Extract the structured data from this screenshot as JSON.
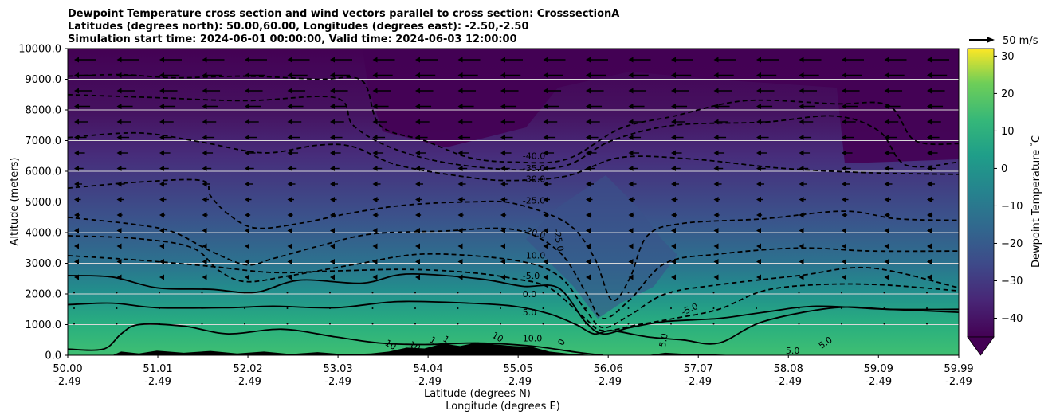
{
  "chart_data": {
    "type": "contour",
    "title_lines": [
      "Dewpoint Temperature cross section and wind vectors parallel to cross section: CrosssectionA",
      "Latitudes (degrees north): 50.00,60.00, Longitudes (degrees east): -2.50,-2.50",
      "Simulation start time: 2024-06-01 00:00:00, Valid time: 2024-06-03 12:00:00"
    ],
    "ylabel": "Altitude (meters)",
    "xlabel_lines": [
      "Latitude (degrees N)",
      "Longitude (degrees E)"
    ],
    "ylim": [
      0,
      10000
    ],
    "yticks": [
      {
        "v": 0,
        "label": "0.0"
      },
      {
        "v": 1000,
        "label": "1000.0"
      },
      {
        "v": 2000,
        "label": "2000.0"
      },
      {
        "v": 3000,
        "label": "3000.0"
      },
      {
        "v": 4000,
        "label": "4000.0"
      },
      {
        "v": 5000,
        "label": "5000.0"
      },
      {
        "v": 6000,
        "label": "6000.0"
      },
      {
        "v": 7000,
        "label": "7000.0"
      },
      {
        "v": 8000,
        "label": "8000.0"
      },
      {
        "v": 9000,
        "label": "9000.0"
      },
      {
        "v": 10000,
        "label": "10000.0"
      }
    ],
    "xlim": [
      50.0,
      59.99
    ],
    "xticks": [
      {
        "v": 50.0,
        "lat": "50.00",
        "lon": "-2.49"
      },
      {
        "v": 51.01,
        "lat": "51.01",
        "lon": "-2.49"
      },
      {
        "v": 52.02,
        "lat": "52.02",
        "lon": "-2.49"
      },
      {
        "v": 53.03,
        "lat": "53.03",
        "lon": "-2.49"
      },
      {
        "v": 54.04,
        "lat": "54.04",
        "lon": "-2.49"
      },
      {
        "v": 55.05,
        "lat": "55.05",
        "lon": "-2.49"
      },
      {
        "v": 56.06,
        "lat": "56.06",
        "lon": "-2.49"
      },
      {
        "v": 57.07,
        "lat": "57.07",
        "lon": "-2.49"
      },
      {
        "v": 58.08,
        "lat": "58.08",
        "lon": "-2.49"
      },
      {
        "v": 59.09,
        "lat": "59.09",
        "lon": "-2.49"
      },
      {
        "v": 59.99,
        "lat": "59.99",
        "lon": "-2.49"
      }
    ],
    "grid": "horizontal",
    "colorbar": {
      "label": "Dewpoint Temperature $^\\circ$C",
      "range": [
        -45,
        32
      ],
      "ticks": [
        {
          "v": -40,
          "label": "−40"
        },
        {
          "v": -30,
          "label": "−30"
        },
        {
          "v": -20,
          "label": "−20"
        },
        {
          "v": -10,
          "label": "−10"
        },
        {
          "v": 0,
          "label": "0"
        },
        {
          "v": 10,
          "label": "10"
        },
        {
          "v": 20,
          "label": "20"
        },
        {
          "v": 30,
          "label": "30"
        }
      ],
      "colormap": "viridis",
      "extend": "min"
    },
    "quiver_key": {
      "label": "50 m/s"
    },
    "contours": [
      {
        "level": -40.0,
        "label": "-40.0",
        "style": "dashed",
        "pts": [
          [
            50.0,
            9100
          ],
          [
            50.6,
            9150
          ],
          [
            51.2,
            9050
          ],
          [
            52.0,
            9100
          ],
          [
            52.8,
            9000
          ],
          [
            53.3,
            8950
          ],
          [
            53.5,
            7500
          ],
          [
            54.0,
            7000
          ],
          [
            54.5,
            6450
          ],
          [
            55.0,
            6300
          ],
          [
            55.6,
            6400
          ],
          [
            56.2,
            7400
          ],
          [
            56.8,
            7800
          ],
          [
            57.6,
            8300
          ],
          [
            58.6,
            8200
          ],
          [
            59.2,
            8150
          ],
          [
            59.5,
            7000
          ],
          [
            59.99,
            6900
          ]
        ]
      },
      {
        "level": -35.0,
        "label": "-35.0",
        "style": "dashed",
        "pts": [
          [
            50.0,
            8500
          ],
          [
            51.0,
            8400
          ],
          [
            52.0,
            8300
          ],
          [
            53.0,
            8400
          ],
          [
            53.2,
            7500
          ],
          [
            53.6,
            6800
          ],
          [
            54.2,
            6300
          ],
          [
            55.0,
            6050
          ],
          [
            55.6,
            6200
          ],
          [
            56.1,
            7000
          ],
          [
            56.8,
            7500
          ],
          [
            57.8,
            7600
          ],
          [
            58.6,
            7800
          ],
          [
            59.1,
            7300
          ],
          [
            59.4,
            6200
          ],
          [
            59.99,
            6300
          ]
        ]
      },
      {
        "level": -30.0,
        "label": "-30.0",
        "style": "dashed",
        "pts": [
          [
            50.0,
            7100
          ],
          [
            50.8,
            7250
          ],
          [
            51.5,
            6950
          ],
          [
            52.2,
            6600
          ],
          [
            52.8,
            6850
          ],
          [
            53.2,
            6800
          ],
          [
            53.7,
            6200
          ],
          [
            54.5,
            5800
          ],
          [
            55.0,
            5700
          ],
          [
            55.6,
            5850
          ],
          [
            56.2,
            6450
          ],
          [
            57.0,
            6400
          ],
          [
            58.0,
            6100
          ],
          [
            59.0,
            5950
          ],
          [
            59.99,
            5900
          ]
        ]
      },
      {
        "level": -25.0,
        "label": "-25.0",
        "style": "dashed",
        "pts": [
          [
            50.0,
            5450
          ],
          [
            50.8,
            5650
          ],
          [
            51.5,
            5700
          ],
          [
            51.6,
            5200
          ],
          [
            51.8,
            4600
          ],
          [
            52.1,
            4150
          ],
          [
            52.6,
            4300
          ],
          [
            53.2,
            4650
          ],
          [
            53.8,
            4900
          ],
          [
            54.5,
            5000
          ],
          [
            55.0,
            4950
          ],
          [
            55.6,
            4300
          ],
          [
            55.9,
            3200
          ],
          [
            56.1,
            1800
          ],
          [
            56.3,
            2500
          ],
          [
            56.5,
            3900
          ],
          [
            56.9,
            4300
          ],
          [
            57.8,
            4450
          ],
          [
            58.7,
            4700
          ],
          [
            59.3,
            4450
          ],
          [
            59.99,
            4400
          ]
        ]
      },
      {
        "level": -20.0,
        "label": "-20.0",
        "style": "dashed",
        "pts": [
          [
            50.0,
            4500
          ],
          [
            50.8,
            4250
          ],
          [
            51.2,
            4000
          ],
          [
            51.6,
            3400
          ],
          [
            52.0,
            2950
          ],
          [
            52.3,
            3150
          ],
          [
            52.8,
            3550
          ],
          [
            53.4,
            3950
          ],
          [
            54.2,
            4050
          ],
          [
            55.0,
            4100
          ],
          [
            55.5,
            3400
          ],
          [
            55.8,
            2100
          ],
          [
            56.0,
            1200
          ],
          [
            56.3,
            1800
          ],
          [
            56.7,
            3000
          ],
          [
            57.3,
            3300
          ],
          [
            58.2,
            3500
          ],
          [
            59.0,
            3400
          ],
          [
            59.99,
            3400
          ]
        ]
      },
      {
        "level": -10.0,
        "label": "-10.0",
        "style": "dashed",
        "pts": [
          [
            50.0,
            3900
          ],
          [
            50.8,
            3800
          ],
          [
            51.4,
            3500
          ],
          [
            51.7,
            2750
          ],
          [
            52.0,
            2400
          ],
          [
            52.5,
            2600
          ],
          [
            53.2,
            2950
          ],
          [
            54.0,
            3300
          ],
          [
            55.0,
            3100
          ],
          [
            55.5,
            2600
          ],
          [
            55.8,
            1500
          ],
          [
            56.0,
            900
          ],
          [
            56.3,
            1300
          ],
          [
            56.7,
            2000
          ],
          [
            57.3,
            2300
          ],
          [
            58.2,
            2600
          ],
          [
            59.0,
            2850
          ],
          [
            59.99,
            2200
          ]
        ]
      },
      {
        "level": -5.0,
        "label": "-5.0",
        "style": "dashed",
        "pts": [
          [
            50.0,
            3250
          ],
          [
            50.8,
            3100
          ],
          [
            51.6,
            2900
          ],
          [
            52.3,
            2700
          ],
          [
            53.0,
            2750
          ],
          [
            53.8,
            2800
          ],
          [
            54.5,
            2700
          ],
          [
            55.0,
            2500
          ],
          [
            55.4,
            2200
          ],
          [
            55.8,
            1200
          ],
          [
            56.0,
            800
          ],
          [
            56.4,
            1000
          ],
          [
            56.8,
            1200
          ],
          [
            57.3,
            1500
          ],
          [
            57.8,
            2100
          ],
          [
            58.4,
            2300
          ],
          [
            59.1,
            2300
          ],
          [
            59.99,
            2100
          ]
        ]
      },
      {
        "level": 0.0,
        "label": "0.0",
        "style": "solid",
        "pts": [
          [
            50.0,
            2600
          ],
          [
            50.5,
            2550
          ],
          [
            51.0,
            2200
          ],
          [
            51.6,
            2150
          ],
          [
            52.1,
            2050
          ],
          [
            52.6,
            2450
          ],
          [
            53.3,
            2350
          ],
          [
            53.8,
            2650
          ],
          [
            54.6,
            2500
          ],
          [
            55.1,
            2250
          ],
          [
            55.5,
            2200
          ],
          [
            55.8,
            1100
          ],
          [
            56.0,
            700
          ],
          [
            56.3,
            900
          ],
          [
            56.7,
            1100
          ],
          [
            57.3,
            1200
          ],
          [
            57.8,
            1400
          ],
          [
            58.4,
            1600
          ],
          [
            59.2,
            1500
          ],
          [
            59.99,
            1500
          ]
        ]
      },
      {
        "level": 5.0,
        "label": "5.0",
        "style": "solid",
        "pts": [
          [
            50.0,
            1650
          ],
          [
            50.5,
            1700
          ],
          [
            51.0,
            1550
          ],
          [
            51.8,
            1550
          ],
          [
            52.3,
            1600
          ],
          [
            53.0,
            1550
          ],
          [
            53.7,
            1750
          ],
          [
            54.5,
            1700
          ],
          [
            55.0,
            1600
          ],
          [
            55.4,
            1350
          ],
          [
            55.7,
            1000
          ],
          [
            55.9,
            700
          ],
          [
            56.1,
            800
          ],
          [
            56.5,
            600
          ],
          [
            56.9,
            500
          ],
          [
            57.3,
            400
          ],
          [
            57.8,
            1100
          ],
          [
            58.6,
            1550
          ],
          [
            59.2,
            1500
          ],
          [
            59.99,
            1400
          ]
        ]
      },
      {
        "level": 10.0,
        "label": "10.0",
        "style": "solid",
        "pts": [
          [
            50.0,
            200
          ],
          [
            50.4,
            200
          ],
          [
            50.6,
            700
          ],
          [
            50.8,
            1000
          ],
          [
            51.3,
            950
          ],
          [
            51.8,
            700
          ],
          [
            52.4,
            850
          ],
          [
            53.0,
            600
          ],
          [
            53.5,
            400
          ],
          [
            54.0,
            350
          ],
          [
            54.6,
            400
          ],
          [
            55.2,
            300
          ],
          [
            55.7,
            100
          ],
          [
            56.0,
            0
          ]
        ]
      }
    ],
    "contour_labels": [
      {
        "text": "-40.0",
        "x": 55.1,
        "y": 6400
      },
      {
        "text": "-35.0",
        "x": 55.1,
        "y": 6000
      },
      {
        "text": "-30.0",
        "x": 55.1,
        "y": 5650
      },
      {
        "text": "-25.0",
        "x": 55.1,
        "y": 4950
      },
      {
        "text": "-25.0",
        "x": 55.45,
        "y": 4100,
        "rotate": 80
      },
      {
        "text": "-20.0",
        "x": 55.1,
        "y": 4000,
        "rotate": 15
      },
      {
        "text": "-10.0",
        "x": 55.1,
        "y": 3150
      },
      {
        "text": "-5.0",
        "x": 55.1,
        "y": 2500
      },
      {
        "text": "0.0",
        "x": 55.1,
        "y": 1900
      },
      {
        "text": "5.0",
        "x": 55.1,
        "y": 1300
      },
      {
        "text": "10.0",
        "x": 55.1,
        "y": 450
      },
      {
        "text": "-5.0",
        "x": 56.9,
        "y": 1300,
        "rotate": -25
      },
      {
        "text": "5.0",
        "x": 56.7,
        "y": 250,
        "rotate": -80
      },
      {
        "text": "5.0",
        "x": 58.05,
        "y": 50
      },
      {
        "text": "5.0",
        "x": 58.45,
        "y": 200,
        "rotate": -35
      },
      {
        "text": "10",
        "x": 53.55,
        "y": 350,
        "rotate": 30
      },
      {
        "text": "10",
        "x": 53.82,
        "y": 300,
        "rotate": 30
      },
      {
        "text": "1",
        "x": 54.05,
        "y": 450,
        "rotate": 30
      },
      {
        "text": "1",
        "x": 54.2,
        "y": 480,
        "rotate": 30
      },
      {
        "text": "10",
        "x": 54.75,
        "y": 600,
        "rotate": 30
      },
      {
        "text": "0",
        "x": 55.55,
        "y": 300,
        "rotate": -60
      }
    ],
    "terrain": [
      [
        50.0,
        0
      ],
      [
        50.5,
        0
      ],
      [
        50.6,
        120
      ],
      [
        50.8,
        60
      ],
      [
        51.0,
        150
      ],
      [
        51.3,
        80
      ],
      [
        51.6,
        140
      ],
      [
        51.9,
        60
      ],
      [
        52.2,
        120
      ],
      [
        52.5,
        40
      ],
      [
        52.8,
        100
      ],
      [
        53.1,
        30
      ],
      [
        53.4,
        60
      ],
      [
        53.6,
        120
      ],
      [
        53.8,
        250
      ],
      [
        54.0,
        220
      ],
      [
        54.2,
        380
      ],
      [
        54.4,
        300
      ],
      [
        54.6,
        420
      ],
      [
        54.8,
        350
      ],
      [
        55.0,
        300
      ],
      [
        55.2,
        280
      ],
      [
        55.4,
        120
      ],
      [
        55.6,
        60
      ],
      [
        55.8,
        20
      ],
      [
        56.1,
        0
      ],
      [
        56.5,
        0
      ],
      [
        56.7,
        80
      ],
      [
        56.9,
        50
      ],
      [
        57.2,
        30
      ],
      [
        57.5,
        0
      ],
      [
        59.99,
        0
      ]
    ]
  }
}
